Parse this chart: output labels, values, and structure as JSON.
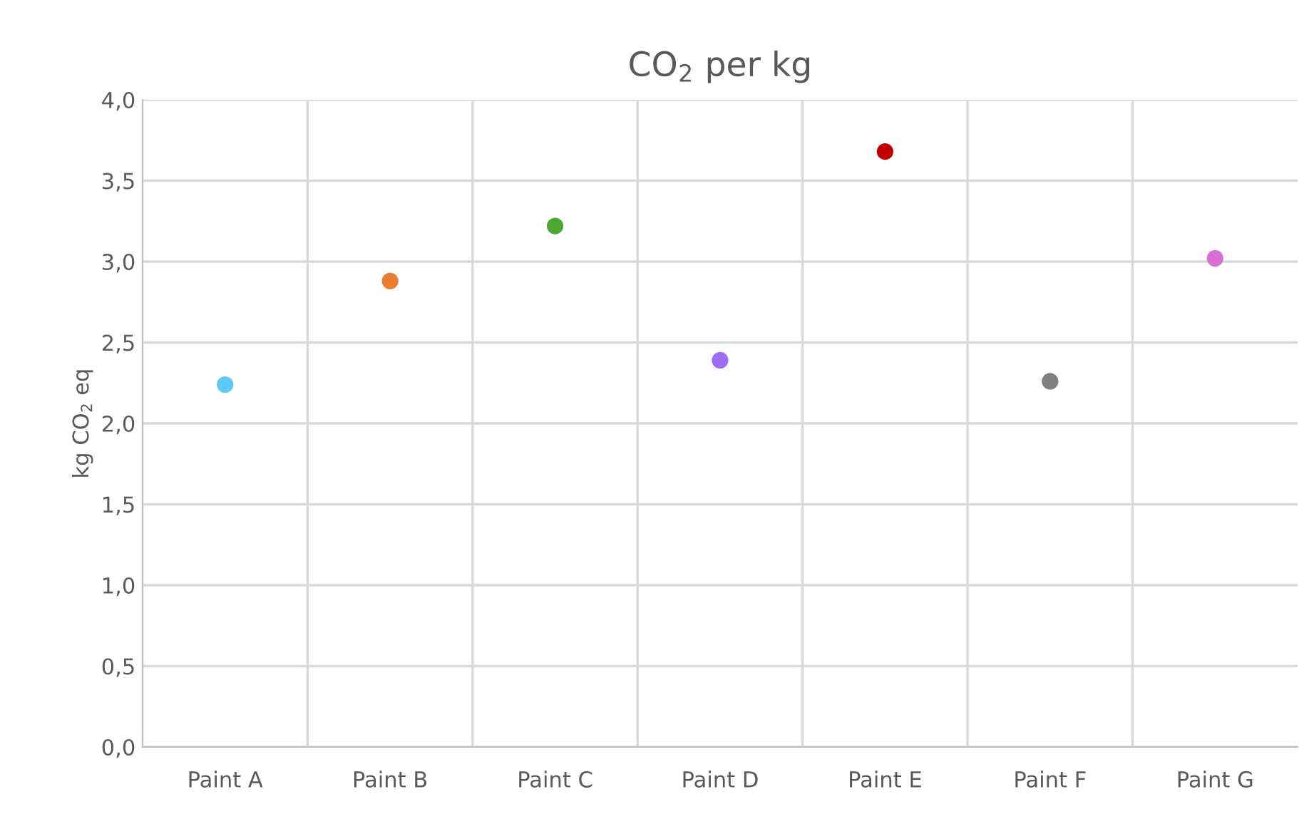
{
  "chart_data": {
    "type": "scatter",
    "title": "CO$_{2}$ per kg",
    "ylabel": "kg CO$_{2}$ eq",
    "categories": [
      "Paint A",
      "Paint B",
      "Paint C",
      "Paint D",
      "Paint E",
      "Paint F",
      "Paint G"
    ],
    "values": [
      2.24,
      2.88,
      3.22,
      2.39,
      3.68,
      2.26,
      3.02
    ],
    "colors": [
      "#5bc8f5",
      "#ed7d31",
      "#4ea72e",
      "#a06cf5",
      "#c00000",
      "#808080",
      "#d96fd3"
    ],
    "ylim": [
      0,
      4
    ],
    "yticks": [
      {
        "value": 0,
        "label": "0,0"
      },
      {
        "value": 0.5,
        "label": "0,5"
      },
      {
        "value": 1,
        "label": "1,0"
      },
      {
        "value": 1.5,
        "label": "1,5"
      },
      {
        "value": 2,
        "label": "2,0"
      },
      {
        "value": 2.5,
        "label": "2,5"
      },
      {
        "value": 3,
        "label": "3,0"
      },
      {
        "value": 3.5,
        "label": "3,5"
      },
      {
        "value": 4,
        "label": "4,0"
      }
    ],
    "grid": true,
    "marker": "circle"
  }
}
